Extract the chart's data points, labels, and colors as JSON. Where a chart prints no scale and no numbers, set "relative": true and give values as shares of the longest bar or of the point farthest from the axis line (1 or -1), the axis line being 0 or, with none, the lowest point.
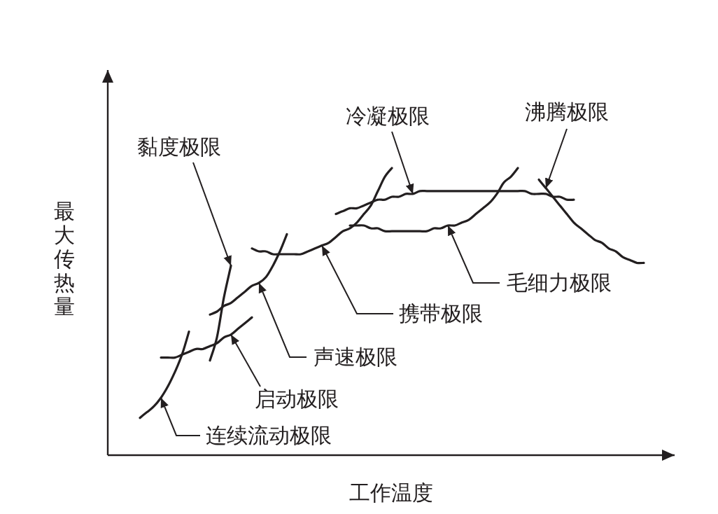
{
  "chart_data": {
    "type": "line",
    "relative": true,
    "xlabel": "工作温度",
    "ylabel": "最大传热量",
    "marker": "none",
    "line_style": "solid",
    "categories": [
      null,
      null,
      null,
      null,
      null,
      null,
      null,
      null,
      null,
      null,
      null,
      null,
      null,
      null,
      null,
      null,
      null,
      null,
      null,
      null,
      null,
      null,
      null,
      null,
      null,
      null,
      null,
      null,
      null,
      null,
      null,
      null,
      null,
      null,
      null,
      null,
      null,
      null,
      null,
      null,
      null,
      null,
      null,
      null,
      null,
      null,
      null,
      null,
      null,
      null,
      null,
      null,
      null,
      null,
      null,
      null,
      null,
      null,
      null,
      null,
      null,
      null,
      null,
      null,
      null,
      null,
      null,
      null,
      null,
      null,
      null,
      null,
      null
    ],
    "series": [
      {
        "name": "连续流动极限",
        "color": "#231f20",
        "values": [
          0.13,
          0.15,
          0.17,
          0.2,
          0.24,
          0.29,
          0.35,
          0.43,
          null,
          null,
          null,
          null,
          null,
          null,
          null,
          null,
          null,
          null,
          null,
          null,
          null,
          null,
          null,
          null,
          null,
          null,
          null,
          null,
          null,
          null,
          null,
          null,
          null,
          null,
          null,
          null,
          null,
          null,
          null,
          null,
          null,
          null,
          null,
          null,
          null,
          null,
          null,
          null,
          null,
          null,
          null,
          null,
          null,
          null,
          null,
          null,
          null,
          null,
          null,
          null,
          null,
          null,
          null,
          null,
          null,
          null,
          null,
          null,
          null,
          null,
          null,
          null,
          null
        ]
      },
      {
        "name": "启动极限",
        "color": "#231f20",
        "values": [
          null,
          null,
          null,
          0.34,
          0.34,
          0.34,
          0.35,
          0.36,
          0.37,
          0.37,
          0.38,
          0.39,
          0.41,
          0.42,
          0.44,
          0.46,
          0.48,
          null,
          null,
          null,
          null,
          null,
          null,
          null,
          null,
          null,
          null,
          null,
          null,
          null,
          null,
          null,
          null,
          null,
          null,
          null,
          null,
          null,
          null,
          null,
          null,
          null,
          null,
          null,
          null,
          null,
          null,
          null,
          null,
          null,
          null,
          null,
          null,
          null,
          null,
          null,
          null,
          null,
          null,
          null,
          null,
          null,
          null,
          null,
          null,
          null,
          null,
          null,
          null,
          null,
          null,
          null,
          null
        ]
      },
      {
        "name": "黏度极限",
        "color": "#231f20",
        "values": [
          null,
          null,
          null,
          null,
          null,
          null,
          null,
          null,
          null,
          null,
          0.33,
          0.41,
          0.55,
          0.66,
          null,
          null,
          null,
          null,
          null,
          null,
          null,
          null,
          null,
          null,
          null,
          null,
          null,
          null,
          null,
          null,
          null,
          null,
          null,
          null,
          null,
          null,
          null,
          null,
          null,
          null,
          null,
          null,
          null,
          null,
          null,
          null,
          null,
          null,
          null,
          null,
          null,
          null,
          null,
          null,
          null,
          null,
          null,
          null,
          null,
          null,
          null,
          null,
          null,
          null,
          null,
          null,
          null,
          null,
          null,
          null,
          null,
          null,
          null
        ]
      },
      {
        "name": "声速极限",
        "color": "#231f20",
        "values": [
          null,
          null,
          null,
          null,
          null,
          null,
          null,
          null,
          null,
          null,
          0.49,
          0.5,
          0.52,
          0.53,
          0.55,
          0.57,
          0.59,
          0.6,
          0.62,
          0.66,
          0.71,
          0.77,
          null,
          null,
          null,
          null,
          null,
          null,
          null,
          null,
          null,
          null,
          null,
          null,
          null,
          null,
          null,
          null,
          null,
          null,
          null,
          null,
          null,
          null,
          null,
          null,
          null,
          null,
          null,
          null,
          null,
          null,
          null,
          null,
          null,
          null,
          null,
          null,
          null,
          null,
          null,
          null,
          null,
          null,
          null,
          null,
          null,
          null,
          null,
          null,
          null,
          null,
          null
        ]
      },
      {
        "name": "携带极限",
        "color": "#231f20",
        "values": [
          null,
          null,
          null,
          null,
          null,
          null,
          null,
          null,
          null,
          null,
          null,
          null,
          null,
          null,
          null,
          null,
          0.72,
          0.71,
          0.71,
          0.7,
          0.7,
          0.7,
          0.7,
          0.7,
          0.71,
          0.72,
          0.73,
          0.74,
          0.76,
          0.78,
          0.79,
          0.81,
          0.84,
          0.87,
          0.92,
          0.97,
          1.0,
          null,
          null,
          null,
          null,
          null,
          null,
          null,
          null,
          null,
          null,
          null,
          null,
          null,
          null,
          null,
          null,
          null,
          null,
          null,
          null,
          null,
          null,
          null,
          null,
          null,
          null,
          null,
          null,
          null,
          null,
          null,
          null,
          null,
          null,
          null,
          null
        ]
      },
      {
        "name": "冷凝极限",
        "color": "#231f20",
        "values": [
          null,
          null,
          null,
          null,
          null,
          null,
          null,
          null,
          null,
          null,
          null,
          null,
          null,
          null,
          null,
          null,
          null,
          null,
          null,
          null,
          null,
          null,
          null,
          null,
          null,
          null,
          null,
          null,
          0.84,
          0.85,
          0.86,
          0.86,
          0.87,
          0.88,
          0.89,
          0.89,
          0.9,
          0.9,
          0.91,
          0.91,
          0.92,
          0.92,
          0.92,
          0.92,
          0.92,
          0.92,
          0.92,
          0.92,
          0.92,
          0.92,
          0.92,
          0.92,
          0.92,
          0.92,
          0.92,
          0.92,
          0.91,
          0.91,
          0.91,
          0.9,
          0.9,
          0.89,
          0.89,
          null,
          null,
          null,
          null,
          null,
          null,
          null,
          null,
          null,
          null
        ]
      },
      {
        "name": "毛细力极限",
        "color": "#231f20",
        "values": [
          null,
          null,
          null,
          null,
          null,
          null,
          null,
          null,
          null,
          null,
          null,
          null,
          null,
          null,
          null,
          null,
          null,
          null,
          null,
          null,
          null,
          null,
          null,
          null,
          null,
          null,
          null,
          null,
          null,
          null,
          0.8,
          0.8,
          0.8,
          0.79,
          0.79,
          0.78,
          0.78,
          0.78,
          0.78,
          0.78,
          0.78,
          0.78,
          0.79,
          0.79,
          0.8,
          0.8,
          0.81,
          0.82,
          0.84,
          0.86,
          0.88,
          0.91,
          0.95,
          0.97,
          1.0,
          null,
          null,
          null,
          null,
          null,
          null,
          null,
          null,
          null,
          null,
          null,
          null,
          null,
          null,
          null,
          null,
          null,
          null
        ]
      },
      {
        "name": "沸腾极限",
        "color": "#231f20",
        "values": [
          null,
          null,
          null,
          null,
          null,
          null,
          null,
          null,
          null,
          null,
          null,
          null,
          null,
          null,
          null,
          null,
          null,
          null,
          null,
          null,
          null,
          null,
          null,
          null,
          null,
          null,
          null,
          null,
          null,
          null,
          null,
          null,
          null,
          null,
          null,
          null,
          null,
          null,
          null,
          null,
          null,
          null,
          null,
          null,
          null,
          null,
          null,
          null,
          null,
          null,
          null,
          null,
          null,
          null,
          null,
          null,
          null,
          0.96,
          0.93,
          0.9,
          0.87,
          0.84,
          0.81,
          0.79,
          0.77,
          0.75,
          0.74,
          0.72,
          0.71,
          0.69,
          0.68,
          0.67,
          0.67
        ]
      }
    ]
  }
}
